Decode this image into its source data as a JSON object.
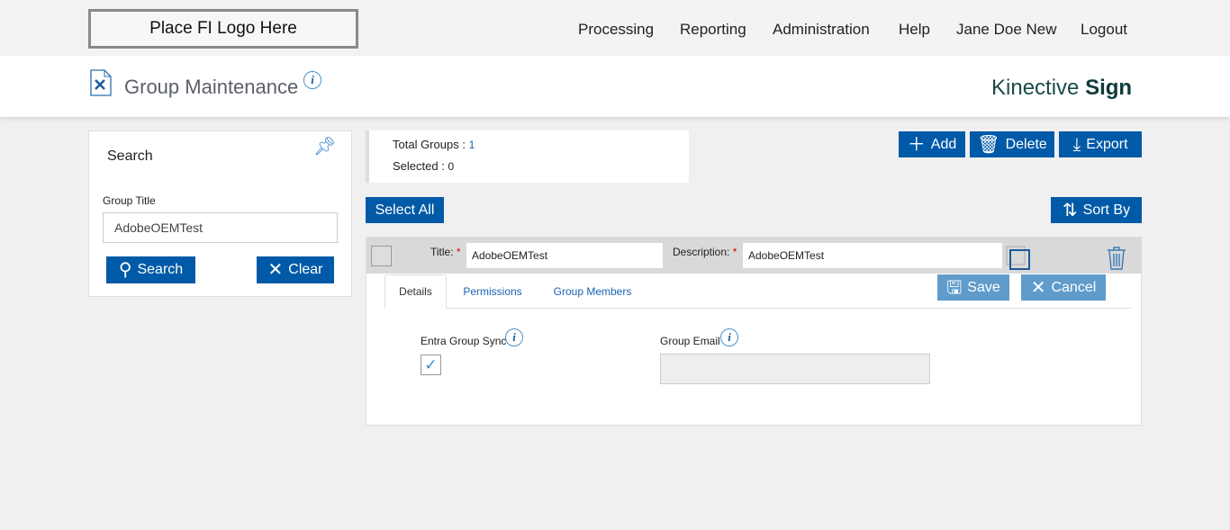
{
  "logo": "Place FI Logo Here",
  "nav": [
    "Processing",
    "Reporting",
    "Administration",
    "Help",
    "Jane Doe New",
    "Logout"
  ],
  "page": {
    "title": "Group Maintenance",
    "brand_light": "Kinective",
    "brand_bold": "Sign"
  },
  "search": {
    "heading": "Search",
    "group_title_label": "Group Title",
    "group_title_value": "AdobeOEMTest",
    "search_label": "Search",
    "clear_label": "Clear"
  },
  "summary": {
    "total_label": "Total Groups :",
    "total_value": "1",
    "selected_label": "Selected :",
    "selected_value": "0"
  },
  "toolbar": {
    "add": "Add",
    "delete": "Delete",
    "export": "Export",
    "select_all": "Select All",
    "sort_by": "Sort By"
  },
  "record": {
    "title_label": "Title:",
    "title_value": "AdobeOEMTest",
    "description_label": "Description:",
    "description_value": "AdobeOEMTest",
    "save": "Save",
    "cancel": "Cancel",
    "tabs": [
      "Details",
      "Permissions",
      "Group Members"
    ],
    "entra_label": "Entra Group Sync",
    "entra_checked": true,
    "email_label": "Group Email",
    "email_value": ""
  },
  "colors": {
    "primary": "#005aa7",
    "disabled": "#5f9ccc"
  }
}
